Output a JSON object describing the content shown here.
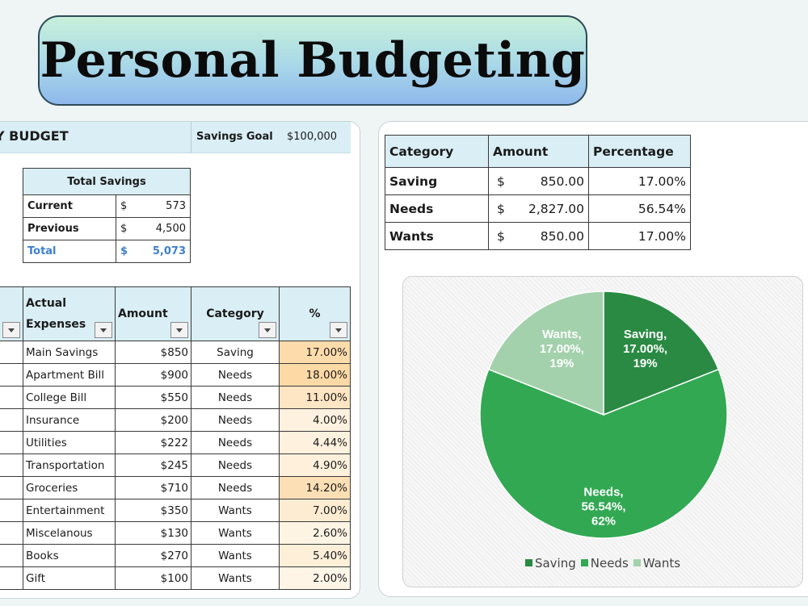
{
  "banner": {
    "title": "Personal Budgeting"
  },
  "budget_header": {
    "title": "Y BUDGET",
    "savings_goal_label": "Savings Goal",
    "savings_goal_value": "$100,000"
  },
  "total_savings": {
    "header": "Total Savings",
    "rows": [
      {
        "label": "Current",
        "currency": "$",
        "value": "573"
      },
      {
        "label": "Previous",
        "currency": "$",
        "value": "4,500"
      },
      {
        "label": "Total",
        "currency": "$",
        "value": "5,073"
      }
    ]
  },
  "expenses": {
    "headers": {
      "name": "Actual Expenses",
      "amount": "Amount",
      "category": "Category",
      "percent": "%"
    },
    "rows": [
      {
        "name": "Main Savings",
        "amount": "$850",
        "category": "Saving",
        "percent": "17.00%",
        "pct_value": 17.0
      },
      {
        "name": "Apartment Bill",
        "amount": "$900",
        "category": "Needs",
        "percent": "18.00%",
        "pct_value": 18.0
      },
      {
        "name": "College Bill",
        "amount": "$550",
        "category": "Needs",
        "percent": "11.00%",
        "pct_value": 11.0
      },
      {
        "name": "Insurance",
        "amount": "$200",
        "category": "Needs",
        "percent": "4.00%",
        "pct_value": 4.0
      },
      {
        "name": "Utilities",
        "amount": "$222",
        "category": "Needs",
        "percent": "4.44%",
        "pct_value": 4.44
      },
      {
        "name": "Transportation",
        "amount": "$245",
        "category": "Needs",
        "percent": "4.90%",
        "pct_value": 4.9
      },
      {
        "name": "Groceries",
        "amount": "$710",
        "category": "Needs",
        "percent": "14.20%",
        "pct_value": 14.2
      },
      {
        "name": "Entertainment",
        "amount": "$350",
        "category": "Wants",
        "percent": "7.00%",
        "pct_value": 7.0
      },
      {
        "name": "Miscelanous",
        "amount": "$130",
        "category": "Wants",
        "percent": "2.60%",
        "pct_value": 2.6
      },
      {
        "name": "Books",
        "amount": "$270",
        "category": "Wants",
        "percent": "5.40%",
        "pct_value": 5.4
      },
      {
        "name": "Gift",
        "amount": "$100",
        "category": "Wants",
        "percent": "2.00%",
        "pct_value": 2.0
      }
    ]
  },
  "summary": {
    "headers": {
      "category": "Category",
      "amount": "Amount",
      "percentage": "Percentage"
    },
    "rows": [
      {
        "category": "Saving",
        "currency": "$",
        "amount": "850.00",
        "percentage": "17.00%"
      },
      {
        "category": "Needs",
        "currency": "$",
        "amount": "2,827.00",
        "percentage": "56.54%"
      },
      {
        "category": "Wants",
        "currency": "$",
        "amount": "850.00",
        "percentage": "17.00%"
      }
    ]
  },
  "colors": {
    "saving": "#2a8a43",
    "needs": "#33a853",
    "wants": "#a3d1ac",
    "header_bg": "#d9eef5",
    "heat": "#fdd9a6",
    "total_blue": "#3d7fd0"
  },
  "chart_data": {
    "type": "pie",
    "categories": [
      "Saving",
      "Needs",
      "Wants"
    ],
    "values": [
      19,
      62,
      19
    ],
    "data_labels": [
      [
        "Saving,",
        "17.00%,",
        "19%"
      ],
      [
        "Needs,",
        "56.54%,",
        "62%"
      ],
      [
        "Wants,",
        "17.00%,",
        "19%"
      ]
    ],
    "legend": [
      "Saving",
      "Needs",
      "Wants"
    ],
    "legend_position": "bottom"
  }
}
